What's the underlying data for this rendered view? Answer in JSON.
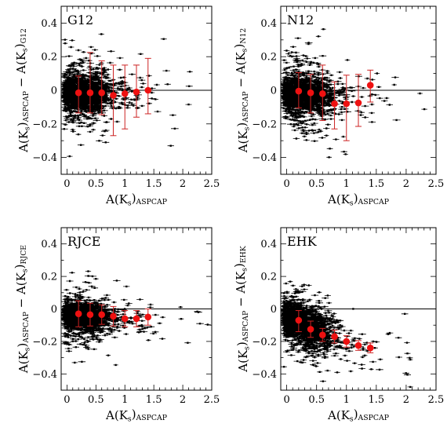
{
  "figure": {
    "background": "#ffffff",
    "frame_color": "#000000",
    "scatter_color": "#000000",
    "median_color": "#ee1111",
    "errorbar_color": "#cc2222"
  },
  "chart_data": [
    {
      "type": "scatter",
      "panel_label": "G12",
      "comparison_subscript": "G12",
      "xlabel": "A(Ks)ASPCAP",
      "ylabel": "A(Ks)ASPCAP − A(Ks)G12",
      "xlim": [
        -0.1,
        2.5
      ],
      "ylim": [
        -0.5,
        0.5
      ],
      "xticks": [
        "0",
        "0.5",
        "1",
        "1.5",
        "2",
        "2.5"
      ],
      "yticks": [
        "−0.4",
        "−0.2",
        "0",
        "0.2",
        "0.4"
      ],
      "reference_line_y": 0,
      "median_points": {
        "x": [
          0.2,
          0.4,
          0.6,
          0.8,
          1.0,
          1.2,
          1.4
        ],
        "y": [
          -0.015,
          -0.015,
          -0.015,
          -0.03,
          -0.02,
          -0.01,
          0.0
        ],
        "err_low": [
          0.12,
          0.12,
          0.13,
          0.24,
          0.21,
          0.15,
          0.14
        ],
        "err_high": [
          0.1,
          0.24,
          0.19,
          0.18,
          0.17,
          0.16,
          0.19
        ]
      },
      "scatter_model": {
        "center": -0.02,
        "spread_core": 0.045,
        "spread_tail": 0.12,
        "trend": 0.0
      }
    },
    {
      "type": "scatter",
      "panel_label": "N12",
      "comparison_subscript": "N12",
      "xlabel": "A(Ks)ASPCAP",
      "ylabel": "A(Ks)ASPCAP − A(Ks)N12",
      "xlim": [
        -0.1,
        2.5
      ],
      "ylim": [
        -0.5,
        0.5
      ],
      "xticks": [
        "0",
        "0.5",
        "1",
        "1.5",
        "2",
        "2.5"
      ],
      "yticks": [
        "−0.4",
        "−0.2",
        "0",
        "0.2",
        "0.4"
      ],
      "reference_line_y": 0,
      "median_points": {
        "x": [
          0.2,
          0.4,
          0.6,
          0.8,
          1.0,
          1.2,
          1.4
        ],
        "y": [
          -0.005,
          -0.015,
          -0.02,
          -0.08,
          -0.08,
          -0.075,
          0.03
        ],
        "err_low": [
          0.1,
          0.12,
          0.16,
          0.15,
          0.22,
          0.14,
          0.1
        ],
        "err_high": [
          0.11,
          0.11,
          0.17,
          0.13,
          0.17,
          0.17,
          0.09
        ]
      },
      "scatter_model": {
        "center": -0.02,
        "spread_core": 0.045,
        "spread_tail": 0.12,
        "trend": -0.02
      }
    },
    {
      "type": "scatter",
      "panel_label": "RJCE",
      "comparison_subscript": "RJCE",
      "xlabel": "A(Ks)ASPCAP",
      "ylabel": "A(Ks)ASPCAP − A(Ks)RJCE",
      "xlim": [
        -0.1,
        2.5
      ],
      "ylim": [
        -0.5,
        0.5
      ],
      "xticks": [
        "0",
        "0.5",
        "1",
        "1.5",
        "2",
        "2.5"
      ],
      "yticks": [
        "−0.4",
        "−0.2",
        "0",
        "0.2",
        "0.4"
      ],
      "reference_line_y": 0,
      "median_points": {
        "x": [
          0.2,
          0.4,
          0.6,
          0.8,
          1.0,
          1.2,
          1.4
        ],
        "y": [
          -0.03,
          -0.035,
          -0.035,
          -0.045,
          -0.06,
          -0.06,
          -0.05
        ],
        "err_low": [
          0.08,
          0.07,
          0.06,
          0.06,
          0.05,
          0.05,
          0.05
        ],
        "err_high": [
          0.08,
          0.07,
          0.06,
          0.06,
          0.05,
          0.05,
          0.05
        ]
      },
      "scatter_model": {
        "center": -0.04,
        "spread_core": 0.035,
        "spread_tail": 0.09,
        "trend": -0.02
      }
    },
    {
      "type": "scatter",
      "panel_label": "EHK",
      "comparison_subscript": "EHK",
      "xlabel": "A(Ks)ASPCAP",
      "ylabel": "A(Ks)ASPCAP − A(Ks)EHK",
      "xlim": [
        -0.1,
        2.5
      ],
      "ylim": [
        -0.5,
        0.5
      ],
      "xticks": [
        "0",
        "0.5",
        "1",
        "1.5",
        "2",
        "2.5"
      ],
      "yticks": [
        "−0.4",
        "−0.2",
        "0",
        "0.2",
        "0.4"
      ],
      "reference_line_y": 0,
      "median_points": {
        "x": [
          0.2,
          0.4,
          0.6,
          0.8,
          1.0,
          1.2,
          1.4
        ],
        "y": [
          -0.07,
          -0.125,
          -0.16,
          -0.17,
          -0.2,
          -0.225,
          -0.24
        ],
        "err_low": [
          0.07,
          0.05,
          0.04,
          0.04,
          0.035,
          0.03,
          0.03
        ],
        "err_high": [
          0.06,
          0.05,
          0.04,
          0.04,
          0.035,
          0.03,
          0.03
        ]
      },
      "scatter_model": {
        "center": -0.06,
        "spread_core": 0.05,
        "spread_tail": 0.1,
        "trend": -0.13
      }
    }
  ]
}
